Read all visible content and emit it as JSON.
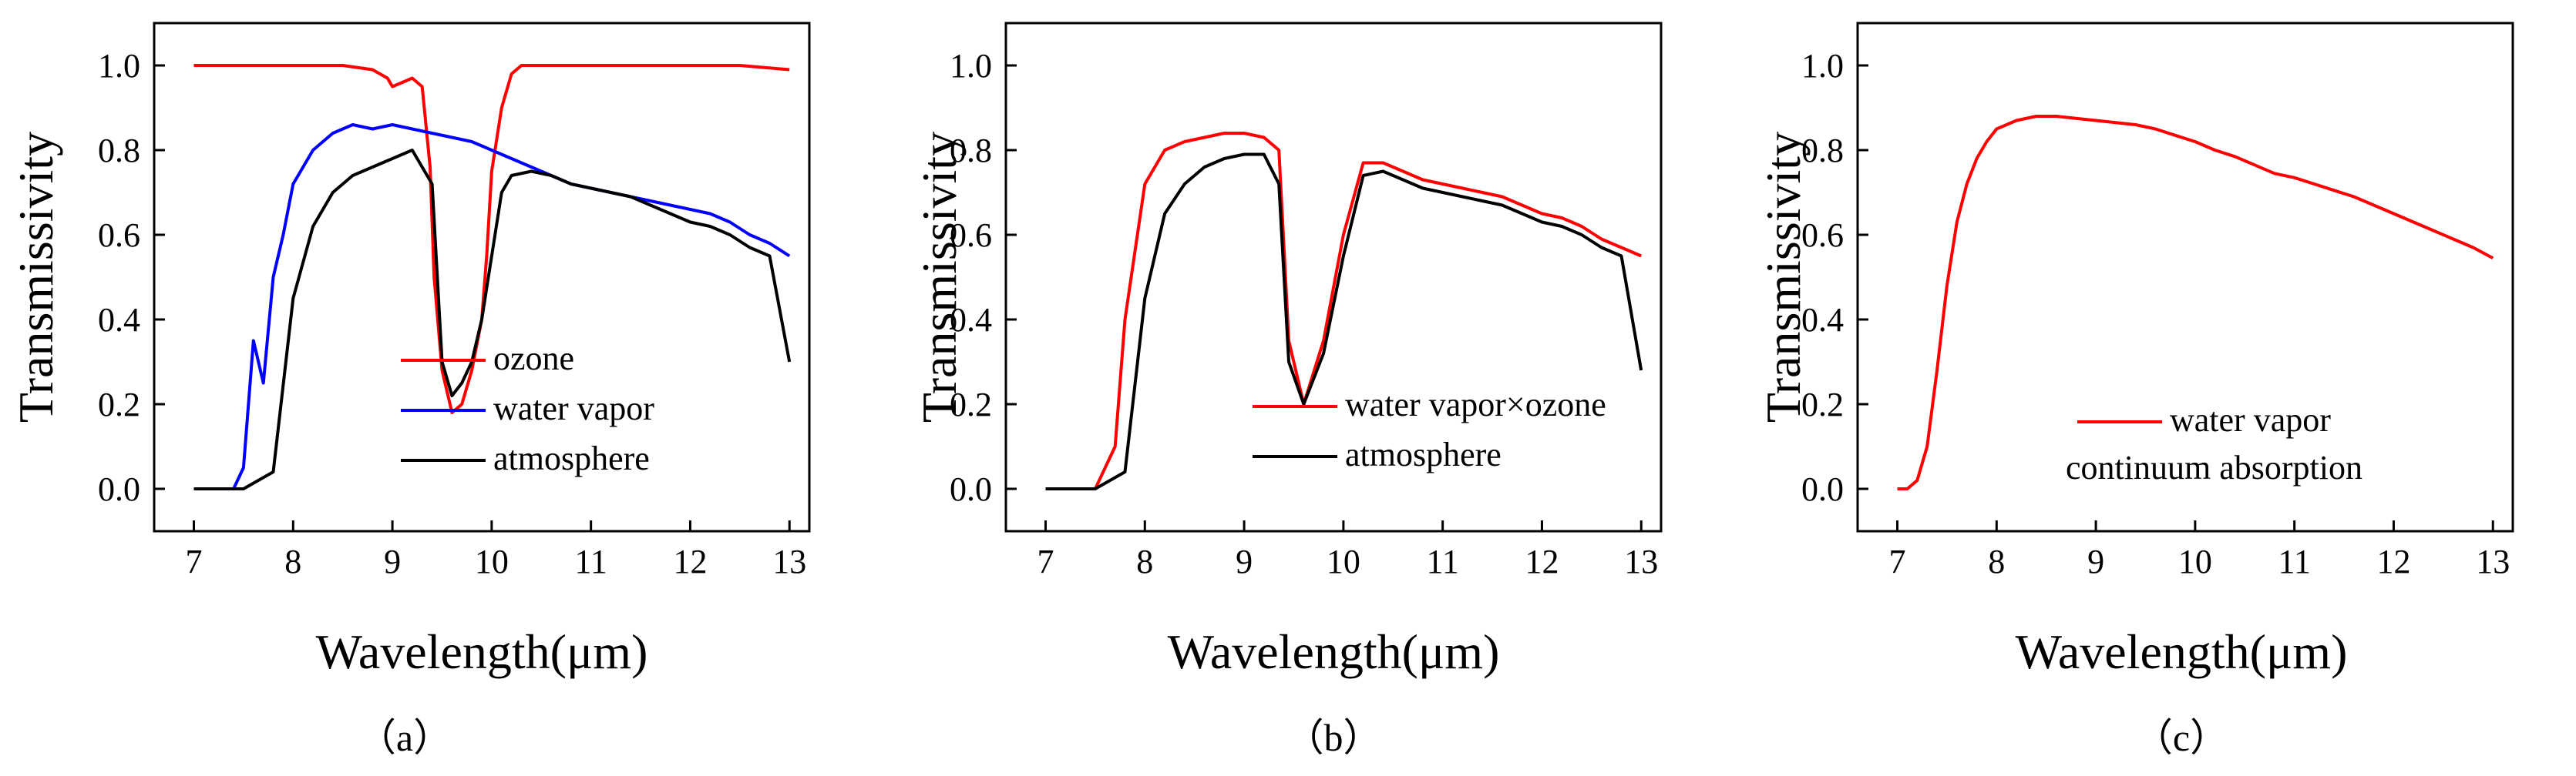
{
  "figure": {
    "captions": [
      "（a）",
      "（b）",
      "（c）"
    ]
  },
  "chart_data": [
    {
      "type": "line",
      "panel": "a",
      "caption": "（a）",
      "xlabel": "Wavelength(μm)",
      "ylabel": "Transmissivity",
      "xlim": [
        6.6,
        13.2
      ],
      "ylim": [
        -0.1,
        1.1
      ],
      "xticks": [
        7,
        8,
        9,
        10,
        11,
        12,
        13
      ],
      "yticks": [
        0.0,
        0.2,
        0.4,
        0.6,
        0.8,
        1.0
      ],
      "legend_position": "lower-right",
      "series": [
        {
          "name": "ozone",
          "color": "#ff0000",
          "x": [
            7.0,
            7.5,
            8.0,
            8.5,
            8.8,
            8.95,
            9.0,
            9.1,
            9.2,
            9.3,
            9.38,
            9.42,
            9.5,
            9.6,
            9.7,
            9.8,
            9.9,
            9.95,
            10.0,
            10.1,
            10.2,
            10.3,
            10.5,
            11.0,
            11.5,
            12.0,
            12.5,
            13.0
          ],
          "y": [
            1.0,
            1.0,
            1.0,
            1.0,
            0.99,
            0.97,
            0.95,
            0.96,
            0.97,
            0.95,
            0.76,
            0.5,
            0.28,
            0.18,
            0.2,
            0.28,
            0.4,
            0.55,
            0.75,
            0.9,
            0.98,
            1.0,
            1.0,
            1.0,
            1.0,
            1.0,
            1.0,
            0.99
          ]
        },
        {
          "name": "water vapor",
          "color": "#0000ff",
          "x": [
            7.0,
            7.4,
            7.5,
            7.6,
            7.7,
            7.8,
            7.9,
            8.0,
            8.2,
            8.4,
            8.6,
            8.8,
            9.0,
            9.2,
            9.4,
            9.6,
            9.8,
            10.0,
            10.2,
            10.4,
            10.6,
            10.8,
            11.0,
            11.2,
            11.4,
            11.6,
            11.8,
            12.0,
            12.2,
            12.4,
            12.6,
            12.8,
            13.0
          ],
          "y": [
            0.0,
            0.0,
            0.05,
            0.35,
            0.25,
            0.5,
            0.6,
            0.72,
            0.8,
            0.84,
            0.86,
            0.85,
            0.86,
            0.85,
            0.84,
            0.83,
            0.82,
            0.8,
            0.78,
            0.76,
            0.74,
            0.72,
            0.71,
            0.7,
            0.69,
            0.68,
            0.67,
            0.66,
            0.65,
            0.63,
            0.6,
            0.58,
            0.55
          ]
        },
        {
          "name": "atmosphere",
          "color": "#000000",
          "x": [
            7.0,
            7.5,
            7.8,
            8.0,
            8.2,
            8.4,
            8.6,
            8.8,
            9.0,
            9.2,
            9.4,
            9.5,
            9.6,
            9.7,
            9.8,
            9.9,
            10.0,
            10.1,
            10.2,
            10.4,
            10.6,
            10.8,
            11.0,
            11.2,
            11.4,
            11.6,
            11.8,
            12.0,
            12.2,
            12.4,
            12.6,
            12.8,
            13.0
          ],
          "y": [
            0.0,
            0.0,
            0.04,
            0.45,
            0.62,
            0.7,
            0.74,
            0.76,
            0.78,
            0.8,
            0.72,
            0.3,
            0.22,
            0.25,
            0.3,
            0.4,
            0.55,
            0.7,
            0.74,
            0.75,
            0.74,
            0.72,
            0.71,
            0.7,
            0.69,
            0.67,
            0.65,
            0.63,
            0.62,
            0.6,
            0.57,
            0.55,
            0.3
          ]
        }
      ]
    },
    {
      "type": "line",
      "panel": "b",
      "caption": "（b）",
      "xlabel": "Wavelength(μm)",
      "ylabel": "Transmissivity",
      "xlim": [
        6.6,
        13.2
      ],
      "ylim": [
        -0.1,
        1.1
      ],
      "xticks": [
        7,
        8,
        9,
        10,
        11,
        12,
        13
      ],
      "yticks": [
        0.0,
        0.2,
        0.4,
        0.6,
        0.8,
        1.0
      ],
      "legend_position": "lower-right",
      "series": [
        {
          "name": "water vapor×ozone",
          "color": "#ff0000",
          "x": [
            7.0,
            7.5,
            7.7,
            7.8,
            8.0,
            8.2,
            8.4,
            8.6,
            8.8,
            9.0,
            9.2,
            9.35,
            9.45,
            9.6,
            9.8,
            10.0,
            10.2,
            10.4,
            10.6,
            10.8,
            11.0,
            11.2,
            11.4,
            11.6,
            11.8,
            12.0,
            12.2,
            12.4,
            12.6,
            12.8,
            13.0
          ],
          "y": [
            0.0,
            0.0,
            0.1,
            0.4,
            0.72,
            0.8,
            0.82,
            0.83,
            0.84,
            0.84,
            0.83,
            0.8,
            0.35,
            0.2,
            0.35,
            0.6,
            0.77,
            0.77,
            0.75,
            0.73,
            0.72,
            0.71,
            0.7,
            0.69,
            0.67,
            0.65,
            0.64,
            0.62,
            0.59,
            0.57,
            0.55
          ]
        },
        {
          "name": "atmosphere",
          "color": "#000000",
          "x": [
            7.0,
            7.5,
            7.8,
            8.0,
            8.2,
            8.4,
            8.6,
            8.8,
            9.0,
            9.2,
            9.35,
            9.45,
            9.6,
            9.8,
            10.0,
            10.2,
            10.4,
            10.6,
            10.8,
            11.0,
            11.2,
            11.4,
            11.6,
            11.8,
            12.0,
            12.2,
            12.4,
            12.6,
            12.8,
            13.0
          ],
          "y": [
            0.0,
            0.0,
            0.04,
            0.45,
            0.65,
            0.72,
            0.76,
            0.78,
            0.79,
            0.79,
            0.72,
            0.3,
            0.2,
            0.32,
            0.55,
            0.74,
            0.75,
            0.73,
            0.71,
            0.7,
            0.69,
            0.68,
            0.67,
            0.65,
            0.63,
            0.62,
            0.6,
            0.57,
            0.55,
            0.28
          ]
        }
      ]
    },
    {
      "type": "line",
      "panel": "c",
      "caption": "（c）",
      "xlabel": "Wavelength(μm)",
      "ylabel": "Transmissivity",
      "xlim": [
        6.6,
        13.2
      ],
      "ylim": [
        -0.1,
        1.1
      ],
      "xticks": [
        7,
        8,
        9,
        10,
        11,
        12,
        13
      ],
      "yticks": [
        0.0,
        0.2,
        0.4,
        0.6,
        0.8,
        1.0
      ],
      "legend_position": "lower-right",
      "series": [
        {
          "name": "water vapor continuum absorption",
          "legend_lines": [
            "water vapor",
            "continuum absorption"
          ],
          "color": "#ff0000",
          "x": [
            7.0,
            7.1,
            7.2,
            7.3,
            7.4,
            7.5,
            7.6,
            7.7,
            7.8,
            7.9,
            8.0,
            8.2,
            8.4,
            8.6,
            8.8,
            9.0,
            9.2,
            9.4,
            9.6,
            9.8,
            10.0,
            10.2,
            10.4,
            10.6,
            10.8,
            11.0,
            11.2,
            11.4,
            11.6,
            11.8,
            12.0,
            12.2,
            12.4,
            12.6,
            12.8,
            13.0
          ],
          "y": [
            0.0,
            0.0,
            0.02,
            0.1,
            0.28,
            0.48,
            0.63,
            0.72,
            0.78,
            0.82,
            0.85,
            0.87,
            0.88,
            0.88,
            0.875,
            0.87,
            0.865,
            0.86,
            0.85,
            0.835,
            0.82,
            0.8,
            0.785,
            0.765,
            0.745,
            0.735,
            0.72,
            0.705,
            0.69,
            0.67,
            0.65,
            0.63,
            0.61,
            0.59,
            0.57,
            0.545
          ]
        }
      ]
    }
  ]
}
